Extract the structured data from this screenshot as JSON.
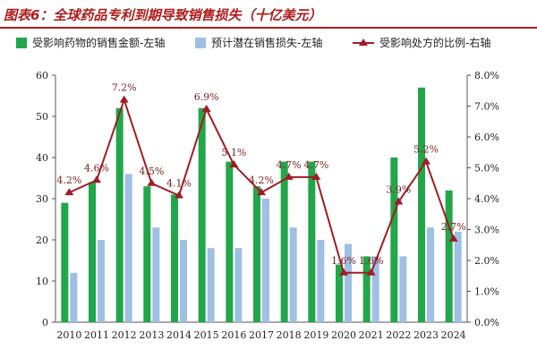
{
  "header": {
    "title": "图表6：全球药品专利到期导致销售损失（十亿美元）"
  },
  "colors": {
    "title": "#b01c1c",
    "bar_sales": "#22a64a",
    "bar_loss": "#9fbfe3",
    "line_ratio": "#a01c24"
  },
  "chart_data": {
    "type": "bar",
    "title": "全球药品专利到期导致销售损失（十亿美元）",
    "categories": [
      "2010",
      "2011",
      "2012",
      "2013",
      "2014",
      "2015",
      "2016",
      "2017",
      "2018",
      "2019",
      "2020",
      "2021",
      "2022",
      "2023",
      "2024"
    ],
    "series": [
      {
        "name": "受影响药物的销售金额-左轴",
        "type": "bar",
        "axis": "left",
        "values": [
          29,
          34,
          52,
          33,
          31,
          52,
          39,
          33,
          39,
          39,
          14,
          16,
          40,
          57,
          32
        ]
      },
      {
        "name": "预计潜在销售损失-左轴",
        "type": "bar",
        "axis": "left",
        "values": [
          12,
          20,
          36,
          23,
          20,
          18,
          18,
          30,
          23,
          20,
          19,
          16,
          16,
          23,
          22
        ]
      },
      {
        "name": "受影响处方的比例-右轴",
        "type": "line",
        "axis": "right",
        "values": [
          4.2,
          4.6,
          7.2,
          4.5,
          4.1,
          6.9,
          5.1,
          4.2,
          4.7,
          4.7,
          1.6,
          1.6,
          3.9,
          5.2,
          2.7
        ],
        "labels": [
          "4.2%",
          "4.6%",
          "7.2%",
          "4.5%",
          "4.1%",
          "6.9%",
          "5.1%",
          "4.2%",
          "4.7%",
          "4.7%",
          "1.6%",
          "1.6%",
          "3.9%",
          "5.2%",
          "2.7%"
        ]
      }
    ],
    "y_left": {
      "min": 0,
      "max": 60,
      "step": 10,
      "ticks": [
        "0",
        "10",
        "20",
        "30",
        "40",
        "50",
        "60"
      ]
    },
    "y_right": {
      "min": 0,
      "max": 8,
      "step": 1,
      "ticks": [
        "0.0%",
        "1.0%",
        "2.0%",
        "3.0%",
        "4.0%",
        "5.0%",
        "6.0%",
        "7.0%",
        "8.0%"
      ]
    },
    "legend": {
      "position": "top",
      "items": [
        "受影响药物的销售金额-左轴",
        "预计潜在销售损失-左轴",
        "受影响处方的比例-右轴"
      ]
    },
    "grid": false
  }
}
